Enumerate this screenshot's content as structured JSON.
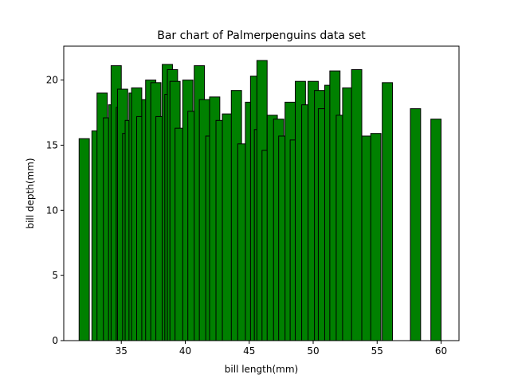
{
  "chart_data": {
    "type": "bar",
    "title": "Bar chart of Palmerpenguins data set",
    "xlabel": "bill length(mm)",
    "ylabel": "bill depth(mm)",
    "xlim": [
      30.5,
      61.4
    ],
    "ylim": [
      0,
      22.6
    ],
    "xticks": [
      "35",
      "40",
      "45",
      "50",
      "55",
      "60"
    ],
    "yticks": [
      "0",
      "5",
      "10",
      "15",
      "20"
    ],
    "grid": false,
    "bar_color": "#008000",
    "edge_color": "#000000",
    "bar_width": 0.8,
    "x": [
      32.1,
      33.1,
      33.5,
      34.0,
      34.4,
      34.6,
      35.0,
      35.1,
      35.5,
      35.7,
      36.0,
      36.2,
      36.6,
      37.0,
      37.3,
      37.7,
      38.1,
      38.6,
      38.8,
      39.0,
      39.2,
      39.6,
      40.2,
      40.6,
      41.1,
      41.5,
      42.0,
      42.3,
      42.8,
      43.3,
      44.0,
      44.5,
      45.1,
      45.5,
      45.8,
      46.0,
      46.4,
      46.8,
      47.3,
      47.7,
      48.2,
      48.6,
      49.0,
      49.5,
      50.0,
      50.5,
      50.8,
      51.3,
      51.7,
      52.2,
      52.7,
      53.4,
      54.2,
      54.9,
      55.8,
      58.0,
      59.6
    ],
    "values": [
      15.5,
      16.1,
      19.0,
      17.1,
      18.1,
      21.1,
      17.9,
      19.3,
      15.9,
      16.9,
      19.0,
      19.4,
      17.2,
      18.5,
      20.0,
      19.8,
      17.2,
      21.2,
      18.9,
      20.8,
      19.9,
      16.3,
      20.0,
      17.6,
      21.1,
      18.5,
      15.7,
      18.7,
      16.9,
      17.4,
      19.2,
      15.1,
      18.3,
      20.3,
      16.2,
      21.5,
      14.6,
      17.3,
      17.0,
      15.7,
      18.3,
      15.4,
      19.9,
      18.1,
      19.9,
      19.2,
      17.8,
      19.6,
      20.7,
      17.3,
      19.4,
      20.8,
      15.7,
      15.9,
      19.8,
      17.8,
      17.0
    ]
  }
}
